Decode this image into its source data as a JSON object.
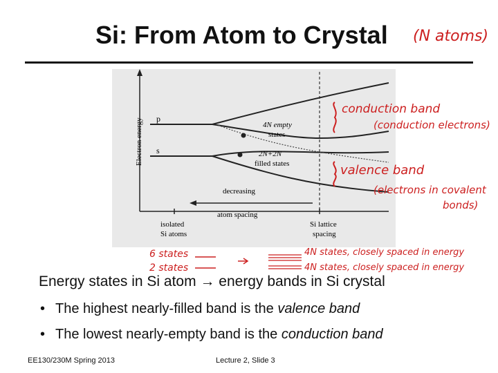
{
  "title": "Si: From Atom to Crystal",
  "handwritten": {
    "n_atoms": "(N atoms)",
    "conduction_band": "conduction band",
    "conduction_electrons": "(conduction electrons)",
    "valence_band": "valence band",
    "electrons_covalent": "(electrons in covalent",
    "bonds": "bonds)",
    "six_states": "6 states",
    "two_states": "2 states",
    "fourN_states_1": "4N states, closely spaced in energy",
    "fourN_states_2": "4N states, closely spaced in energy"
  },
  "figure": {
    "ylabel": "Electron energy",
    "p_label": "p",
    "s_label": "s",
    "empty_line1": "4N empty",
    "empty_line2": "states",
    "filled_line1": "2N+2N",
    "filled_line2": "filled states",
    "decreasing_line1": "decreasing",
    "decreasing_line2": "atom spacing",
    "isolated_line1": "isolated",
    "isolated_line2": "Si atoms",
    "lattice_line1": "Si lattice",
    "lattice_line2": "spacing"
  },
  "subheading": "Energy states in Si atom → energy bands in Si crystal",
  "bullets": [
    {
      "prefix": "The highest nearly-filled band is the ",
      "emph": "valence band"
    },
    {
      "prefix": "The lowest nearly-empty band is the ",
      "emph": "conduction band"
    }
  ],
  "footer": {
    "course": "EE130/230M Spring 2013",
    "lecture": "Lecture 2, Slide 3"
  }
}
